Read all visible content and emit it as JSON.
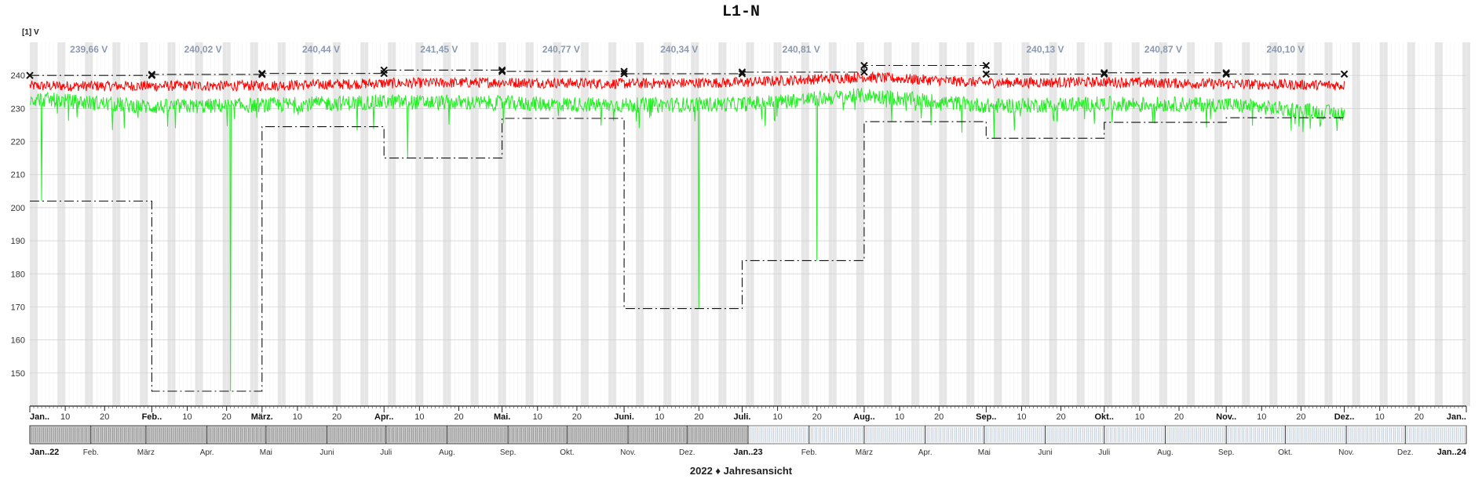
{
  "title": "L1-N",
  "unit_label": "[1] V",
  "footer_label": "2022 ♦ Jahresansicht",
  "chart_data": {
    "type": "line",
    "title": "L1-N",
    "ylabel": "[1] V",
    "ylim": [
      140,
      250
    ],
    "y_ticks": [
      150,
      160,
      170,
      180,
      190,
      200,
      210,
      220,
      230,
      240
    ],
    "x_range": [
      "2022-01-01",
      "2023-01-01"
    ],
    "x_tick_labels": [
      {
        "date": "2022-01-01",
        "label": "Jan..",
        "major": true
      },
      {
        "date": "2022-01-10",
        "label": "10"
      },
      {
        "date": "2022-01-20",
        "label": "20"
      },
      {
        "date": "2022-02-01",
        "label": "Feb..",
        "major": true
      },
      {
        "date": "2022-02-10",
        "label": "10"
      },
      {
        "date": "2022-02-20",
        "label": "20"
      },
      {
        "date": "2022-03-01",
        "label": "März.",
        "major": true
      },
      {
        "date": "2022-03-10",
        "label": "10"
      },
      {
        "date": "2022-03-20",
        "label": "20"
      },
      {
        "date": "2022-04-01",
        "label": "Apr..",
        "major": true
      },
      {
        "date": "2022-04-10",
        "label": "10"
      },
      {
        "date": "2022-04-20",
        "label": "20"
      },
      {
        "date": "2022-05-01",
        "label": "Mai.",
        "major": true
      },
      {
        "date": "2022-05-10",
        "label": "10"
      },
      {
        "date": "2022-05-20",
        "label": "20"
      },
      {
        "date": "2022-06-01",
        "label": "Juni.",
        "major": true
      },
      {
        "date": "2022-06-10",
        "label": "10"
      },
      {
        "date": "2022-06-20",
        "label": "20"
      },
      {
        "date": "2022-07-01",
        "label": "Juli.",
        "major": true
      },
      {
        "date": "2022-07-10",
        "label": "10"
      },
      {
        "date": "2022-07-20",
        "label": "20"
      },
      {
        "date": "2022-08-01",
        "label": "Aug..",
        "major": true
      },
      {
        "date": "2022-08-10",
        "label": "10"
      },
      {
        "date": "2022-08-20",
        "label": "20"
      },
      {
        "date": "2022-09-01",
        "label": "Sep..",
        "major": true
      },
      {
        "date": "2022-09-10",
        "label": "10"
      },
      {
        "date": "2022-09-20",
        "label": "20"
      },
      {
        "date": "2022-10-01",
        "label": "Okt..",
        "major": true
      },
      {
        "date": "2022-10-10",
        "label": "10"
      },
      {
        "date": "2022-10-20",
        "label": "20"
      },
      {
        "date": "2022-11-01",
        "label": "Nov..",
        "major": true
      },
      {
        "date": "2022-11-10",
        "label": "10"
      },
      {
        "date": "2022-11-20",
        "label": "20"
      },
      {
        "date": "2022-12-01",
        "label": "Dez..",
        "major": true
      },
      {
        "date": "2022-12-10",
        "label": "10"
      },
      {
        "date": "2022-12-20",
        "label": "20"
      },
      {
        "date": "2023-01-01",
        "label": "Jan..",
        "major": true
      }
    ],
    "monthly_max": [
      {
        "month": "2022-01",
        "x": [
          "2022-01-01",
          "2022-02-01"
        ],
        "y": 240.0
      },
      {
        "month": "2022-02",
        "x": [
          "2022-02-01",
          "2022-03-01"
        ],
        "y": 240.3
      },
      {
        "month": "2022-03",
        "x": [
          "2022-03-01",
          "2022-04-01"
        ],
        "y": 240.6
      },
      {
        "month": "2022-04",
        "x": [
          "2022-04-01",
          "2022-05-01"
        ],
        "y": 241.6
      },
      {
        "month": "2022-05",
        "x": [
          "2022-05-01",
          "2022-06-01"
        ],
        "y": 241.2
      },
      {
        "month": "2022-06",
        "x": [
          "2022-06-01",
          "2022-07-01"
        ],
        "y": 240.5
      },
      {
        "month": "2022-07",
        "x": [
          "2022-07-01",
          "2022-08-01"
        ],
        "y": 241.0
      },
      {
        "month": "2022-08",
        "x": [
          "2022-08-01",
          "2022-09-01"
        ],
        "y": 243.0
      },
      {
        "month": "2022-09",
        "x": [
          "2022-09-01",
          "2022-10-01"
        ],
        "y": 240.4
      },
      {
        "month": "2022-10",
        "x": [
          "2022-10-01",
          "2022-11-01"
        ],
        "y": 240.8
      },
      {
        "month": "2022-11",
        "x": [
          "2022-11-01",
          "2022-12-01"
        ],
        "y": 240.4
      }
    ],
    "monthly_min": [
      {
        "month": "2022-01",
        "x": [
          "2022-01-01",
          "2022-02-01"
        ],
        "y": 202.0
      },
      {
        "month": "2022-02",
        "x": [
          "2022-02-01",
          "2022-03-01"
        ],
        "y": 144.5
      },
      {
        "month": "2022-03",
        "x": [
          "2022-03-01",
          "2022-04-01"
        ],
        "y": 224.5
      },
      {
        "month": "2022-04",
        "x": [
          "2022-04-01",
          "2022-05-01"
        ],
        "y": 215.0
      },
      {
        "month": "2022-05",
        "x": [
          "2022-05-01",
          "2022-06-01"
        ],
        "y": 227.0
      },
      {
        "month": "2022-06",
        "x": [
          "2022-06-01",
          "2022-07-01"
        ],
        "y": 169.5
      },
      {
        "month": "2022-07",
        "x": [
          "2022-07-01",
          "2022-08-01"
        ],
        "y": 184.0
      },
      {
        "month": "2022-08",
        "x": [
          "2022-08-01",
          "2022-09-01"
        ],
        "y": 226.0
      },
      {
        "month": "2022-09",
        "x": [
          "2022-09-01",
          "2022-10-01"
        ],
        "y": 221.0
      },
      {
        "month": "2022-10",
        "x": [
          "2022-10-01",
          "2022-11-01"
        ],
        "y": 225.8
      },
      {
        "month": "2022-11",
        "x": [
          "2022-11-01",
          "2022-12-01"
        ],
        "y": 227.2
      }
    ],
    "monthly_mean_labels": [
      {
        "date": "2022-01-16",
        "text": "239,66 V"
      },
      {
        "date": "2022-02-14",
        "text": "240,02 V"
      },
      {
        "date": "2022-03-16",
        "text": "240,44 V"
      },
      {
        "date": "2022-04-15",
        "text": "241,45 V"
      },
      {
        "date": "2022-05-16",
        "text": "240,77 V"
      },
      {
        "date": "2022-06-15",
        "text": "240,34 V"
      },
      {
        "date": "2022-07-16",
        "text": "240,81 V"
      },
      {
        "date": "2022-09-16",
        "text": "240,13 V"
      },
      {
        "date": "2022-10-16",
        "text": "240,87 V"
      },
      {
        "date": "2022-11-16",
        "text": "240,10 V"
      }
    ],
    "series": [
      {
        "color": "#ff0000",
        "x_start": "2022-01-01",
        "x_end": "2022-12-01",
        "baseline": [
          {
            "date": "2022-01-01",
            "y": 236.8
          },
          {
            "date": "2022-02-01",
            "y": 236.8
          },
          {
            "date": "2022-03-01",
            "y": 236.9
          },
          {
            "date": "2022-04-01",
            "y": 237.6
          },
          {
            "date": "2022-05-01",
            "y": 237.9
          },
          {
            "date": "2022-06-01",
            "y": 237.5
          },
          {
            "date": "2022-07-01",
            "y": 237.9
          },
          {
            "date": "2022-08-01",
            "y": 239.5
          },
          {
            "date": "2022-09-01",
            "y": 237.8
          },
          {
            "date": "2022-10-01",
            "y": 238.0
          },
          {
            "date": "2022-11-01",
            "y": 237.4
          },
          {
            "date": "2022-12-01",
            "y": 237.0
          }
        ],
        "noise_amplitude": 1.6,
        "dips": []
      },
      {
        "color": "#22ee22",
        "x_start": "2022-01-01",
        "x_end": "2022-12-01",
        "baseline": [
          {
            "date": "2022-01-01",
            "y": 233.0
          },
          {
            "date": "2022-02-01",
            "y": 230.5
          },
          {
            "date": "2022-03-01",
            "y": 231.0
          },
          {
            "date": "2022-04-01",
            "y": 232.0
          },
          {
            "date": "2022-05-01",
            "y": 231.6
          },
          {
            "date": "2022-06-01",
            "y": 231.0
          },
          {
            "date": "2022-07-01",
            "y": 231.3
          },
          {
            "date": "2022-08-01",
            "y": 234.0
          },
          {
            "date": "2022-09-01",
            "y": 230.8
          },
          {
            "date": "2022-10-01",
            "y": 231.4
          },
          {
            "date": "2022-11-01",
            "y": 231.2
          },
          {
            "date": "2022-12-01",
            "y": 228.5
          }
        ],
        "noise_amplitude": 2.3,
        "dips": [
          {
            "date": "2022-01-04",
            "y": 202.0
          },
          {
            "date": "2022-01-25",
            "y": 224.0
          },
          {
            "date": "2022-02-21",
            "y": 144.5
          },
          {
            "date": "2022-04-07",
            "y": 215.0
          },
          {
            "date": "2022-06-20",
            "y": 169.5
          },
          {
            "date": "2022-07-20",
            "y": 184.0
          },
          {
            "date": "2022-08-08",
            "y": 226.0
          },
          {
            "date": "2022-09-03",
            "y": 221.0
          },
          {
            "date": "2022-10-03",
            "y": 225.8
          }
        ]
      }
    ],
    "navigator": {
      "range": [
        "2022-01-01",
        "2024-01-01"
      ],
      "selected": [
        "2022-01-01",
        "2023-01-01"
      ],
      "labels": [
        {
          "date": "2022-01-01",
          "label": "Jan..22",
          "major": true
        },
        {
          "date": "2022-02-01",
          "label": "Feb."
        },
        {
          "date": "2022-03-01",
          "label": "März"
        },
        {
          "date": "2022-04-01",
          "label": "Apr."
        },
        {
          "date": "2022-05-01",
          "label": "Mai"
        },
        {
          "date": "2022-06-01",
          "label": "Juni"
        },
        {
          "date": "2022-07-01",
          "label": "Juli"
        },
        {
          "date": "2022-08-01",
          "label": "Aug."
        },
        {
          "date": "2022-09-01",
          "label": "Sep."
        },
        {
          "date": "2022-10-01",
          "label": "Okt."
        },
        {
          "date": "2022-11-01",
          "label": "Nov."
        },
        {
          "date": "2022-12-01",
          "label": "Dez."
        },
        {
          "date": "2023-01-01",
          "label": "Jan..23",
          "major": true
        },
        {
          "date": "2023-02-01",
          "label": "Feb."
        },
        {
          "date": "2023-03-01",
          "label": "März"
        },
        {
          "date": "2023-04-01",
          "label": "Apr."
        },
        {
          "date": "2023-05-01",
          "label": "Mai"
        },
        {
          "date": "2023-06-01",
          "label": "Juni"
        },
        {
          "date": "2023-07-01",
          "label": "Juli"
        },
        {
          "date": "2023-08-01",
          "label": "Aug."
        },
        {
          "date": "2023-09-01",
          "label": "Sep."
        },
        {
          "date": "2023-10-01",
          "label": "Okt."
        },
        {
          "date": "2023-11-01",
          "label": "Nov."
        },
        {
          "date": "2023-12-01",
          "label": "Dez."
        },
        {
          "date": "2024-01-01",
          "label": "Jan..24",
          "major": true
        }
      ]
    },
    "grid": "weekend-shading"
  }
}
